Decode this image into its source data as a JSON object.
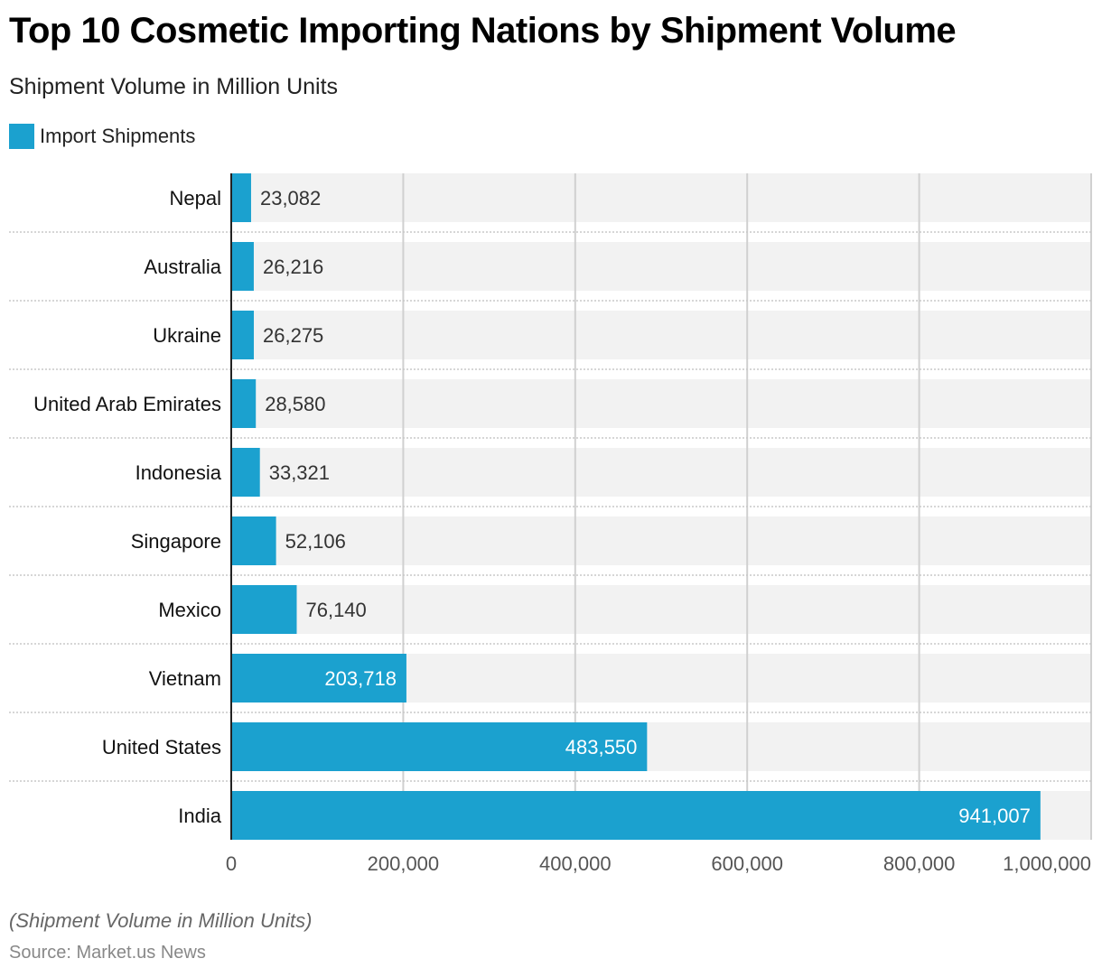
{
  "title": "Top 10 Cosmetic Importing Nations by Shipment Volume",
  "subtitle": "Shipment Volume in Million Units",
  "legend": {
    "label": "Import Shipments",
    "color": "#1ba1cf"
  },
  "footer": {
    "note": "(Shipment Volume in Million Units)",
    "source": "Source: Market.us News"
  },
  "chart_data": {
    "type": "bar",
    "orientation": "horizontal",
    "title": "Top 10 Cosmetic Importing Nations by Shipment Volume",
    "subtitle": "Shipment Volume in Million Units",
    "xlabel": "",
    "ylabel": "",
    "categories": [
      "Nepal",
      "Australia",
      "Ukraine",
      "United Arab Emirates",
      "Indonesia",
      "Singapore",
      "Mexico",
      "Vietnam",
      "United States",
      "India"
    ],
    "series": [
      {
        "name": "Import Shipments",
        "color": "#1ba1cf",
        "values": [
          23082,
          26216,
          26275,
          28580,
          33321,
          52106,
          76140,
          203718,
          483550,
          941007
        ],
        "labels": [
          "23,082",
          "26,216",
          "26,275",
          "28,580",
          "33,321",
          "52,106",
          "76,140",
          "203,718",
          "483,550",
          "941,007"
        ]
      }
    ],
    "xlim": [
      0,
      1000000
    ],
    "xticks": [
      0,
      200000,
      400000,
      600000,
      800000,
      1000000
    ],
    "xtick_labels": [
      "0",
      "200,000",
      "400,000",
      "600,000",
      "800,000",
      "1,000,000"
    ],
    "grid": true,
    "legend_position": "top-left",
    "colors": {
      "bar": "#1ba1cf",
      "track": "#f2f2f2",
      "grid": "#d0d0d0",
      "axis": "#222222"
    }
  }
}
